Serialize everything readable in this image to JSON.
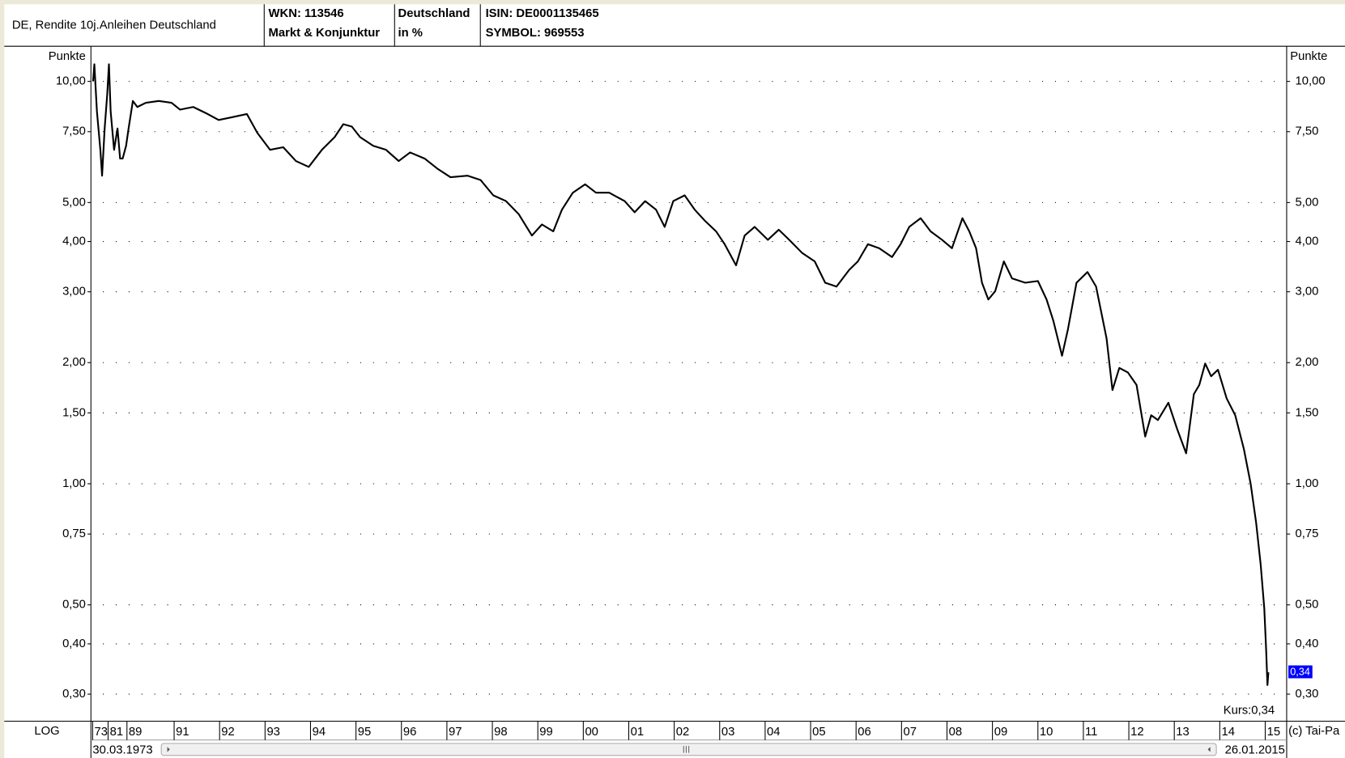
{
  "chart_data": {
    "type": "line",
    "header": {
      "title": "DE, Rendite 10j.Anleihen Deutschland",
      "wkn": "WKN: 113546",
      "group": "Markt & Konjunktur",
      "country": "Deutschland",
      "unit": "in %",
      "isin": "ISIN: DE0001135465",
      "symbol": "SYMBOL: 969553"
    },
    "y_axis_label": "Punkte",
    "scale_label": "LOG",
    "log_scale": true,
    "grid": true,
    "start_date": "30.03.1973",
    "end_date": "26.01.2015",
    "kurs_label": "Kurs:0,34",
    "current_label": "0,34",
    "copyright": "(c) Tai-Pa",
    "xlim": [
      1973.24,
      2015.07
    ],
    "ylim": [
      0.257,
      12.05
    ],
    "yticks": [
      {
        "value": 10,
        "label": "10,00"
      },
      {
        "value": 7.5,
        "label": "7,50"
      },
      {
        "value": 5,
        "label": "5,00"
      },
      {
        "value": 4,
        "label": "4,00"
      },
      {
        "value": 3,
        "label": "3,00"
      },
      {
        "value": 2,
        "label": "2,00"
      },
      {
        "value": 1.5,
        "label": "1,50"
      },
      {
        "value": 1,
        "label": "1,00"
      },
      {
        "value": 0.75,
        "label": "0,75"
      },
      {
        "value": 0.5,
        "label": "0,50"
      },
      {
        "value": 0.4,
        "label": "0,40"
      },
      {
        "value": 0.3,
        "label": "0,30"
      }
    ],
    "xticks": [
      {
        "value": 1973,
        "label": "73"
      },
      {
        "value": 1981,
        "label": "81"
      },
      {
        "value": 1989,
        "label": "89"
      },
      {
        "value": 1991,
        "label": "91"
      },
      {
        "value": 1992,
        "label": "92"
      },
      {
        "value": 1993,
        "label": "93"
      },
      {
        "value": 1994,
        "label": "94"
      },
      {
        "value": 1995,
        "label": "95"
      },
      {
        "value": 1996,
        "label": "96"
      },
      {
        "value": 1997,
        "label": "97"
      },
      {
        "value": 1998,
        "label": "98"
      },
      {
        "value": 1999,
        "label": "99"
      },
      {
        "value": 2000,
        "label": "00"
      },
      {
        "value": 2001,
        "label": "01"
      },
      {
        "value": 2002,
        "label": "02"
      },
      {
        "value": 2003,
        "label": "03"
      },
      {
        "value": 2004,
        "label": "04"
      },
      {
        "value": 2005,
        "label": "05"
      },
      {
        "value": 2006,
        "label": "06"
      },
      {
        "value": 2007,
        "label": "07"
      },
      {
        "value": 2008,
        "label": "08"
      },
      {
        "value": 2009,
        "label": "09"
      },
      {
        "value": 2010,
        "label": "10"
      },
      {
        "value": 2011,
        "label": "11"
      },
      {
        "value": 2012,
        "label": "12"
      },
      {
        "value": 2013,
        "label": "13"
      },
      {
        "value": 2014,
        "label": "14"
      },
      {
        "value": 2015,
        "label": "15"
      }
    ],
    "x": [
      1973.24,
      1973.89,
      1975.22,
      1977.0,
      1977.89,
      1979.22,
      1980.56,
      1981.36,
      1982.09,
      1983.55,
      1985.0,
      1986.09,
      1987.18,
      1988.64,
      1989.07,
      1989.25,
      1989.44,
      1989.8,
      1990.35,
      1990.89,
      1991.13,
      1991.42,
      1991.7,
      1991.98,
      1992.26,
      1992.6,
      1992.83,
      1993.11,
      1993.4,
      1993.68,
      1993.96,
      1994.25,
      1994.53,
      1994.72,
      1994.91,
      1995.09,
      1995.38,
      1995.66,
      1995.94,
      1996.19,
      1996.51,
      1996.79,
      1997.08,
      1997.45,
      1997.74,
      1998.02,
      1998.3,
      1998.58,
      1998.87,
      1999.09,
      1999.34,
      1999.53,
      1999.77,
      2000.04,
      2000.28,
      2000.57,
      2000.91,
      2001.13,
      2001.36,
      2001.6,
      2001.79,
      2001.98,
      2002.23,
      2002.45,
      2002.68,
      2002.92,
      2003.11,
      2003.36,
      2003.55,
      2003.77,
      2004.06,
      2004.3,
      2004.53,
      2004.81,
      2005.09,
      2005.32,
      2005.57,
      2005.85,
      2006.04,
      2006.26,
      2006.51,
      2006.79,
      2006.98,
      2007.17,
      2007.42,
      2007.64,
      2007.89,
      2008.11,
      2008.34,
      2008.49,
      2008.64,
      2008.77,
      2008.91,
      2009.06,
      2009.25,
      2009.43,
      2009.72,
      2010.0,
      2010.19,
      2010.34,
      2010.53,
      2010.66,
      2010.85,
      2011.09,
      2011.28,
      2011.51,
      2011.64,
      2011.79,
      2011.98,
      2012.17,
      2012.36,
      2012.49,
      2012.64,
      2012.87,
      2013.06,
      2013.26,
      2013.43,
      2013.55,
      2013.68,
      2013.81,
      2013.96,
      2014.15,
      2014.34,
      2014.53,
      2014.68,
      2014.8,
      2014.9,
      2014.98,
      2015.02,
      2015.05,
      2015.07
    ],
    "series": [
      {
        "color": "#000000",
        "values": [
          10,
          11.03,
          8.42,
          6.76,
          5.83,
          7.64,
          9.29,
          11.03,
          8.42,
          6.76,
          7.64,
          6.43,
          6.43,
          6.92,
          7.64,
          8.94,
          8.64,
          8.85,
          8.94,
          8.85,
          8.51,
          8.64,
          8.34,
          8.02,
          8.14,
          8.3,
          7.45,
          6.76,
          6.86,
          6.34,
          6.13,
          6.76,
          7.27,
          7.83,
          7.72,
          7.27,
          6.92,
          6.76,
          6.34,
          6.66,
          6.43,
          6.07,
          5.78,
          5.83,
          5.69,
          5.21,
          5.04,
          4.68,
          4.14,
          4.41,
          4.24,
          4.8,
          5.29,
          5.55,
          5.29,
          5.29,
          5.04,
          4.73,
          5.04,
          4.8,
          4.35,
          5.04,
          5.21,
          4.8,
          4.5,
          4.24,
          3.94,
          3.49,
          4.14,
          4.35,
          4.04,
          4.28,
          4.04,
          3.75,
          3.57,
          3.16,
          3.09,
          3.4,
          3.57,
          3.94,
          3.85,
          3.66,
          3.94,
          4.35,
          4.57,
          4.24,
          4.04,
          3.85,
          4.57,
          4.24,
          3.85,
          3.16,
          2.87,
          3.01,
          3.57,
          3.24,
          3.16,
          3.19,
          2.87,
          2.54,
          2.08,
          2.42,
          3.16,
          3.36,
          3.09,
          2.3,
          1.71,
          1.94,
          1.89,
          1.76,
          1.31,
          1.48,
          1.44,
          1.59,
          1.37,
          1.19,
          1.67,
          1.76,
          1.99,
          1.85,
          1.92,
          1.63,
          1.48,
          1.22,
          1.0,
          0.8,
          0.63,
          0.49,
          0.385,
          0.316,
          0.34
        ]
      }
    ]
  }
}
